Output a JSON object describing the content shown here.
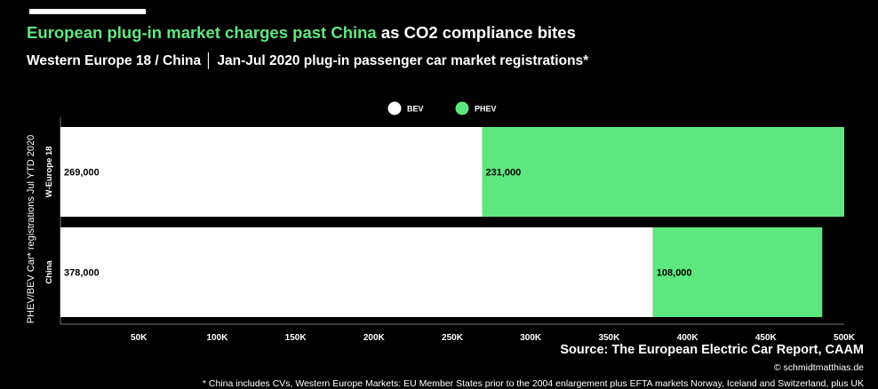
{
  "header": {
    "title_highlight": "European plug-in market charges past China",
    "title_rest": " as CO2 compliance bites",
    "subtitle": "Western Europe 18 / China │ Jan-Jul 2020 plug-in passenger car market registrations*"
  },
  "chart_data": {
    "type": "bar",
    "orientation": "horizontal",
    "stacked": true,
    "categories": [
      "W-Europe 18",
      "China"
    ],
    "series": [
      {
        "name": "BEV",
        "values": [
          269000,
          378000
        ],
        "labels": [
          "269,000",
          "378,000"
        ],
        "color": "#ffffff"
      },
      {
        "name": "PHEV",
        "values": [
          231000,
          108000
        ],
        "labels": [
          "231,000",
          "108,000"
        ],
        "color": "#5ee77f"
      }
    ],
    "xlim": [
      0,
      500000
    ],
    "xticks": [
      50000,
      100000,
      150000,
      200000,
      250000,
      300000,
      350000,
      400000,
      450000,
      500000
    ],
    "xtick_labels": [
      "50K",
      "100K",
      "150K",
      "200K",
      "250K",
      "300K",
      "350K",
      "400K",
      "450K",
      "500K"
    ],
    "ylabel": "PHEV/BEV Car* registrations Jul YTD 2020",
    "legend_position": "top-center",
    "grid": false
  },
  "footer": {
    "source": "Source: The European Electric Car Report, CAAM",
    "copyright": "© schmidtmatthias.de",
    "footnote": "* China includes CVs, Western Europe Markets: EU Member States prior to the 2004 enlargement plus EFTA markets Norway, Iceland and Switzerland, plus UK"
  }
}
